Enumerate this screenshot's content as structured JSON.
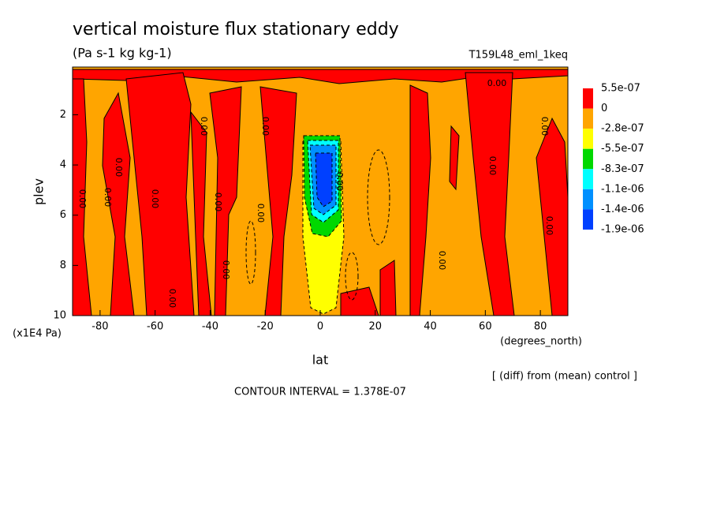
{
  "chart_data": {
    "type": "contour",
    "title": "vertical moisture flux stationary eddy",
    "subtitle": "(Pa s-1 kg kg-1)",
    "dataset": "T159L48_eml_1keq",
    "xlabel": "lat",
    "xunits": "(degrees_north)",
    "ylabel": "plev",
    "yunits": "(x1E4 Pa)",
    "note": "[ (diff) from (mean) control ]",
    "contour_interval": "CONTOUR INTERVAL = 1.378E-07",
    "contour_label": "0.00",
    "xlim": [
      -90,
      90
    ],
    "xticks": [
      -80,
      -60,
      -40,
      -20,
      0,
      20,
      40,
      60,
      80
    ],
    "ylim": [
      10,
      0.1
    ],
    "yticks": [
      2,
      4,
      6,
      8,
      10
    ],
    "levels": [
      {
        "value": 5.5e-07,
        "label": "5.5e-07"
      },
      0,
      {
        "value": -2.8e-07,
        "label": "-2.8e-07"
      },
      {
        "value": -5.5e-07,
        "label": "-5.5e-07"
      },
      {
        "value": -8.3e-07,
        "label": "-8.3e-07"
      },
      {
        "value": -1.1e-06,
        "label": "-1.1e-06"
      },
      {
        "value": -1.4e-06,
        "label": "-1.4e-06"
      },
      {
        "value": -1.9e-06,
        "label": "-1.9e-06"
      }
    ],
    "colors": [
      "#ff0000",
      "#ffa500",
      "#ffff00",
      "#00d800",
      "#00ffff",
      "#0090ff",
      "#0040ff"
    ]
  }
}
